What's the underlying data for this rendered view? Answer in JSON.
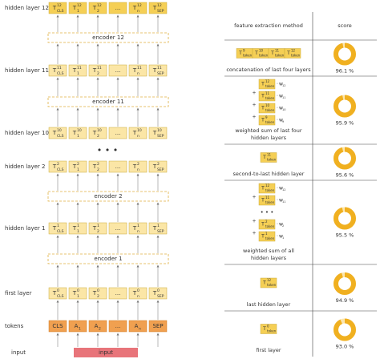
{
  "left": {
    "hidden_layers": [
      {
        "label": "hidden layer 12",
        "sup": "12"
      },
      {
        "label": "hidden layer 11",
        "sup": "11"
      },
      {
        "label": "hidden layer 10",
        "sup": "10"
      },
      {
        "label": "hidden layer 2",
        "sup": "2"
      },
      {
        "label": "hidden layer 1",
        "sup": "1"
      },
      {
        "label": "first layer",
        "sup": "0"
      }
    ],
    "cells": [
      {
        "base": "T",
        "sub": "CLS"
      },
      {
        "base": "T",
        "sub": "1"
      },
      {
        "base": "T",
        "sub": "2"
      },
      {
        "text": "..."
      },
      {
        "base": "T",
        "sub": "n"
      },
      {
        "base": "T",
        "sub": "SEP"
      }
    ],
    "encoders": [
      "encoder 12",
      "encoder 11",
      "encoder 2",
      "encoder 1"
    ],
    "ellipsis": "• • •",
    "tokens_label": "tokens",
    "tokens": [
      {
        "base": "CLS"
      },
      {
        "base": "A",
        "sub": "1"
      },
      {
        "base": "A",
        "sub": "2"
      },
      {
        "base": "..."
      },
      {
        "base": "A",
        "sub": "n"
      },
      {
        "base": "SEP"
      }
    ],
    "input_label": "input",
    "input_box": "input"
  },
  "table": {
    "header": {
      "method": "feature extraction method",
      "score": "score"
    },
    "rows": [
      {
        "chips": [
          {
            "base": "T",
            "sup": "9",
            "sub": "token"
          },
          {
            "base": "T",
            "sup": "10",
            "sub": "token"
          },
          {
            "base": "T",
            "sup": "11",
            "sub": "token"
          },
          {
            "base": "T",
            "sup": "12",
            "sub": "token"
          }
        ],
        "method": [
          "concatenation of last four layers"
        ],
        "score": {
          "value": 96.1,
          "label": "96.1 %"
        }
      },
      {
        "chips": [
          {
            "base": "T",
            "sup": "12",
            "sub": "token",
            "weight": "w",
            "weight_sub": "12"
          },
          {
            "base": "T",
            "sup": "11",
            "sub": "token",
            "weight": "w",
            "weight_sub": "11"
          },
          {
            "base": "T",
            "sup": "10",
            "sub": "token",
            "weight": "w",
            "weight_sub": "10"
          },
          {
            "base": "T",
            "sup": "9",
            "sub": "token",
            "weight": "w",
            "weight_sub": "9"
          }
        ],
        "method": [
          "weighted sum of last four",
          "hidden layers"
        ],
        "score": {
          "value": 95.9,
          "label": "95.9 %"
        }
      },
      {
        "chips": [
          {
            "base": "T",
            "sup": "11",
            "sub": "token"
          }
        ],
        "method": [
          "second-to-last hidden layer"
        ],
        "score": {
          "value": 95.6,
          "label": "95.6 %"
        }
      },
      {
        "chips": [
          {
            "base": "T",
            "sup": "12",
            "sub": "token",
            "weight": "w",
            "weight_sub": "12"
          },
          {
            "base": "T",
            "sup": "11",
            "sub": "token",
            "weight": "w",
            "weight_sub": "11"
          },
          {
            "text": "• • •"
          },
          {
            "base": "T",
            "sup": "2",
            "sub": "token",
            "weight": "w",
            "weight_sub": "2"
          },
          {
            "base": "T",
            "sup": "1",
            "sub": "token",
            "weight": "w",
            "weight_sub": "1"
          }
        ],
        "method": [
          "weighted sum of all",
          "hidden layers"
        ],
        "score": {
          "value": 95.5,
          "label": "95.5 %"
        }
      },
      {
        "chips": [
          {
            "base": "T",
            "sup": "12",
            "sub": "token"
          }
        ],
        "method": [
          "last hidden layer"
        ],
        "score": {
          "value": 94.9,
          "label": "94.9 %"
        }
      },
      {
        "chips": [
          {
            "base": "T",
            "sup": "0",
            "sub": "token"
          }
        ],
        "method": [
          "first layer"
        ],
        "score": {
          "value": 93.0,
          "label": "93.0 %"
        }
      }
    ]
  }
}
